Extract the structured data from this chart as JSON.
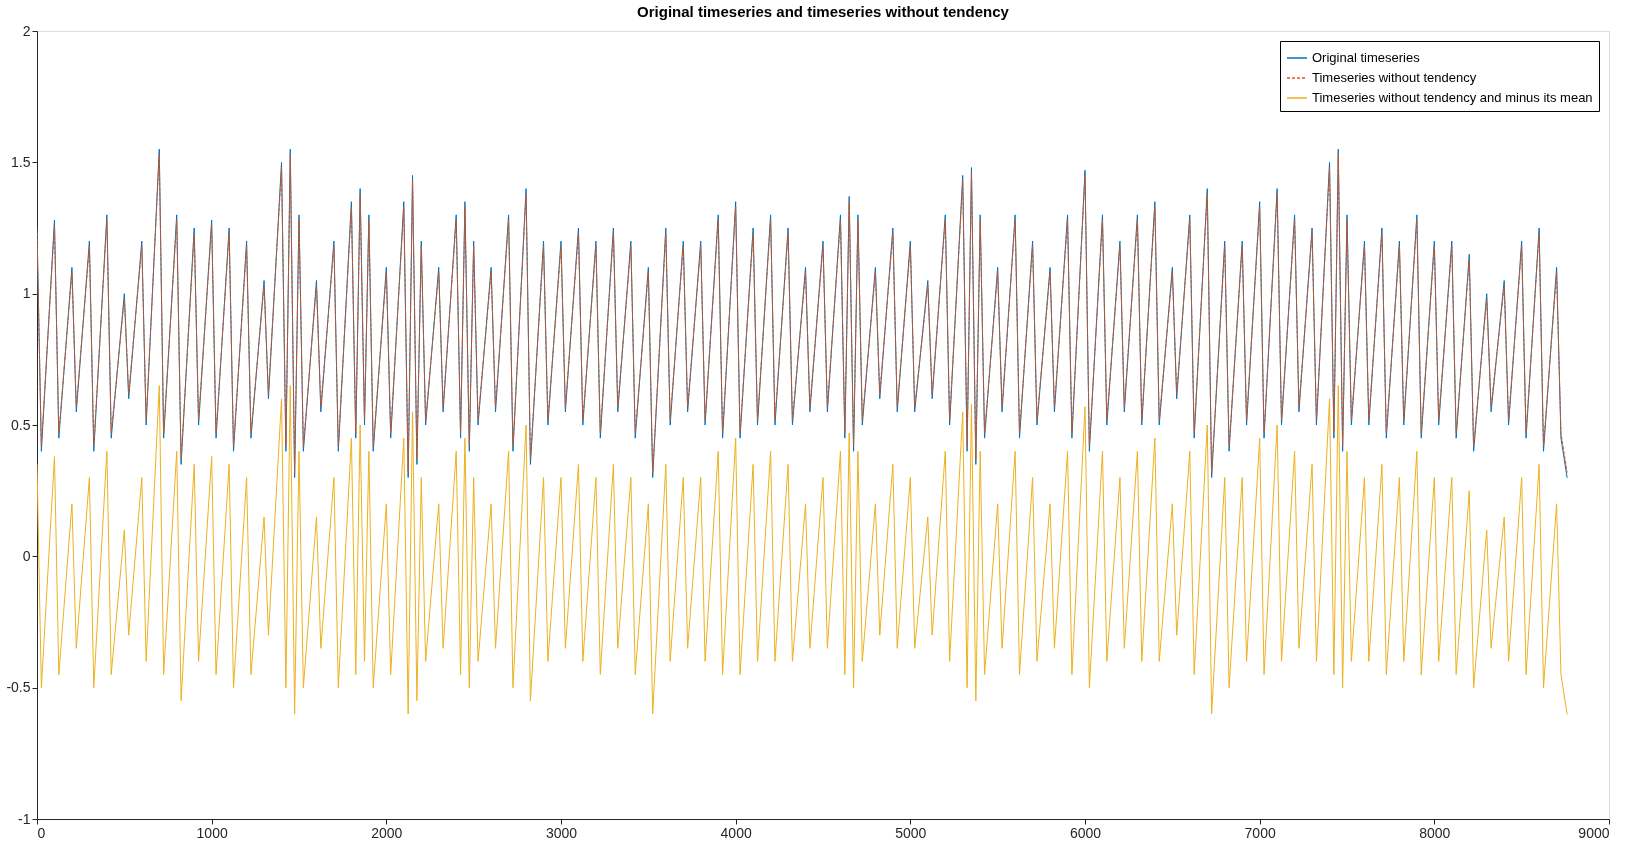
{
  "chart_data": {
    "type": "line",
    "title": "Original timeseries and timeseries without tendency",
    "x": [
      0,
      25,
      100,
      125,
      200,
      225,
      300,
      325,
      400,
      425,
      500,
      525,
      600,
      625,
      700,
      725,
      800,
      825,
      900,
      925,
      1000,
      1025,
      1100,
      1125,
      1200,
      1225,
      1300,
      1325,
      1400,
      1425,
      1450,
      1475,
      1500,
      1525,
      1600,
      1625,
      1700,
      1725,
      1800,
      1825,
      1850,
      1875,
      1900,
      1925,
      2000,
      2025,
      2100,
      2125,
      2150,
      2175,
      2200,
      2225,
      2300,
      2325,
      2400,
      2425,
      2450,
      2475,
      2500,
      2525,
      2600,
      2625,
      2700,
      2725,
      2800,
      2825,
      2900,
      2925,
      3000,
      3025,
      3100,
      3125,
      3200,
      3225,
      3300,
      3325,
      3400,
      3425,
      3500,
      3525,
      3600,
      3625,
      3700,
      3725,
      3800,
      3825,
      3900,
      3925,
      4000,
      4025,
      4100,
      4125,
      4200,
      4225,
      4300,
      4325,
      4400,
      4425,
      4500,
      4525,
      4600,
      4625,
      4650,
      4675,
      4700,
      4725,
      4800,
      4825,
      4900,
      4925,
      5000,
      5025,
      5100,
      5125,
      5200,
      5225,
      5300,
      5325,
      5350,
      5375,
      5400,
      5425,
      5500,
      5525,
      5600,
      5625,
      5700,
      5725,
      5800,
      5825,
      5900,
      5925,
      6000,
      6025,
      6100,
      6125,
      6200,
      6225,
      6300,
      6325,
      6400,
      6425,
      6500,
      6525,
      6600,
      6625,
      6700,
      6725,
      6800,
      6825,
      6900,
      6925,
      7000,
      7025,
      7100,
      7125,
      7200,
      7225,
      7300,
      7325,
      7400,
      7425,
      7450,
      7475,
      7500,
      7525,
      7600,
      7625,
      7700,
      7725,
      7800,
      7825,
      7900,
      7925,
      8000,
      8025,
      8100,
      8125,
      8200,
      8225,
      8300,
      8325,
      8400,
      8425,
      8500,
      8525,
      8600,
      8625,
      8700,
      8725,
      8760
    ],
    "series": [
      {
        "name": "Original timeseries",
        "color": "#0072bd",
        "line_style": "solid",
        "values": [
          1.25,
          0.4,
          1.28,
          0.45,
          1.1,
          0.55,
          1.2,
          0.4,
          1.3,
          0.45,
          1.0,
          0.6,
          1.2,
          0.5,
          1.55,
          0.45,
          1.3,
          0.35,
          1.25,
          0.5,
          1.28,
          0.45,
          1.25,
          0.4,
          1.2,
          0.45,
          1.05,
          0.6,
          1.5,
          0.4,
          1.55,
          0.3,
          1.3,
          0.4,
          1.05,
          0.55,
          1.2,
          0.4,
          1.35,
          0.45,
          1.4,
          0.5,
          1.3,
          0.4,
          1.1,
          0.45,
          1.35,
          0.3,
          1.45,
          0.35,
          1.2,
          0.5,
          1.1,
          0.55,
          1.3,
          0.45,
          1.35,
          0.4,
          1.2,
          0.5,
          1.1,
          0.55,
          1.3,
          0.4,
          1.4,
          0.35,
          1.2,
          0.5,
          1.2,
          0.55,
          1.25,
          0.5,
          1.2,
          0.45,
          1.25,
          0.55,
          1.2,
          0.45,
          1.1,
          0.3,
          1.25,
          0.5,
          1.2,
          0.55,
          1.2,
          0.5,
          1.3,
          0.45,
          1.35,
          0.45,
          1.25,
          0.5,
          1.3,
          0.5,
          1.25,
          0.5,
          1.1,
          0.55,
          1.2,
          0.55,
          1.3,
          0.45,
          1.37,
          0.4,
          1.3,
          0.5,
          1.1,
          0.6,
          1.25,
          0.55,
          1.2,
          0.55,
          1.05,
          0.6,
          1.3,
          0.5,
          1.45,
          0.4,
          1.48,
          0.35,
          1.3,
          0.45,
          1.1,
          0.55,
          1.3,
          0.45,
          1.2,
          0.5,
          1.1,
          0.55,
          1.3,
          0.45,
          1.47,
          0.4,
          1.3,
          0.5,
          1.2,
          0.55,
          1.3,
          0.5,
          1.35,
          0.5,
          1.1,
          0.6,
          1.3,
          0.45,
          1.4,
          0.3,
          1.2,
          0.4,
          1.2,
          0.5,
          1.35,
          0.45,
          1.4,
          0.5,
          1.3,
          0.55,
          1.25,
          0.5,
          1.5,
          0.45,
          1.55,
          0.4,
          1.3,
          0.5,
          1.2,
          0.5,
          1.25,
          0.45,
          1.2,
          0.5,
          1.3,
          0.45,
          1.2,
          0.5,
          1.2,
          0.45,
          1.15,
          0.4,
          1.0,
          0.55,
          1.05,
          0.5,
          1.2,
          0.45,
          1.25,
          0.4,
          1.1,
          0.45,
          0.3
        ]
      },
      {
        "name": "Timeseries without tendency",
        "color": "#d95319",
        "line_style": "dashed",
        "values": [
          1.23,
          0.42,
          1.26,
          0.47,
          1.08,
          0.57,
          1.18,
          0.42,
          1.28,
          0.47,
          0.98,
          0.62,
          1.18,
          0.52,
          1.53,
          0.47,
          1.28,
          0.37,
          1.23,
          0.52,
          1.26,
          0.47,
          1.23,
          0.42,
          1.18,
          0.47,
          1.03,
          0.62,
          1.48,
          0.42,
          1.53,
          0.32,
          1.28,
          0.42,
          1.03,
          0.57,
          1.18,
          0.42,
          1.33,
          0.47,
          1.38,
          0.52,
          1.28,
          0.42,
          1.08,
          0.47,
          1.33,
          0.32,
          1.43,
          0.37,
          1.18,
          0.52,
          1.08,
          0.57,
          1.28,
          0.47,
          1.33,
          0.42,
          1.18,
          0.52,
          1.08,
          0.57,
          1.28,
          0.42,
          1.38,
          0.37,
          1.18,
          0.52,
          1.18,
          0.57,
          1.23,
          0.52,
          1.18,
          0.47,
          1.23,
          0.57,
          1.18,
          0.47,
          1.08,
          0.32,
          1.23,
          0.52,
          1.18,
          0.57,
          1.18,
          0.52,
          1.28,
          0.47,
          1.33,
          0.47,
          1.23,
          0.52,
          1.28,
          0.52,
          1.23,
          0.52,
          1.08,
          0.57,
          1.18,
          0.57,
          1.28,
          0.47,
          1.35,
          0.42,
          1.28,
          0.52,
          1.08,
          0.62,
          1.23,
          0.57,
          1.18,
          0.57,
          1.03,
          0.62,
          1.28,
          0.52,
          1.43,
          0.42,
          1.46,
          0.37,
          1.28,
          0.47,
          1.08,
          0.57,
          1.28,
          0.47,
          1.18,
          0.52,
          1.08,
          0.57,
          1.28,
          0.47,
          1.45,
          0.42,
          1.28,
          0.52,
          1.18,
          0.57,
          1.28,
          0.52,
          1.33,
          0.52,
          1.08,
          0.62,
          1.28,
          0.47,
          1.38,
          0.32,
          1.18,
          0.42,
          1.18,
          0.52,
          1.33,
          0.47,
          1.38,
          0.52,
          1.28,
          0.57,
          1.23,
          0.52,
          1.48,
          0.47,
          1.53,
          0.42,
          1.28,
          0.52,
          1.18,
          0.52,
          1.23,
          0.47,
          1.18,
          0.52,
          1.28,
          0.47,
          1.18,
          0.52,
          1.18,
          0.47,
          1.13,
          0.42,
          0.98,
          0.57,
          1.03,
          0.52,
          1.18,
          0.47,
          1.23,
          0.42,
          1.08,
          0.47,
          0.32
        ]
      },
      {
        "name": "Timeseries without tendency and minus its mean",
        "color": "#edb120",
        "line_style": "solid",
        "values": [
          0.35,
          -0.5,
          0.38,
          -0.45,
          0.2,
          -0.35,
          0.3,
          -0.5,
          0.4,
          -0.45,
          0.1,
          -0.3,
          0.3,
          -0.4,
          0.65,
          -0.45,
          0.4,
          -0.55,
          0.35,
          -0.4,
          0.38,
          -0.45,
          0.35,
          -0.5,
          0.3,
          -0.45,
          0.15,
          -0.3,
          0.6,
          -0.5,
          0.65,
          -0.6,
          0.4,
          -0.5,
          0.15,
          -0.35,
          0.3,
          -0.5,
          0.45,
          -0.45,
          0.5,
          -0.4,
          0.4,
          -0.5,
          0.2,
          -0.45,
          0.45,
          -0.6,
          0.55,
          -0.55,
          0.3,
          -0.4,
          0.2,
          -0.35,
          0.4,
          -0.45,
          0.45,
          -0.5,
          0.3,
          -0.4,
          0.2,
          -0.35,
          0.4,
          -0.5,
          0.5,
          -0.55,
          0.3,
          -0.4,
          0.3,
          -0.35,
          0.35,
          -0.4,
          0.3,
          -0.45,
          0.35,
          -0.35,
          0.3,
          -0.45,
          0.2,
          -0.6,
          0.35,
          -0.4,
          0.3,
          -0.35,
          0.3,
          -0.4,
          0.4,
          -0.45,
          0.45,
          -0.45,
          0.35,
          -0.4,
          0.4,
          -0.4,
          0.35,
          -0.4,
          0.2,
          -0.35,
          0.3,
          -0.35,
          0.4,
          -0.45,
          0.47,
          -0.5,
          0.4,
          -0.4,
          0.2,
          -0.3,
          0.35,
          -0.35,
          0.3,
          -0.35,
          0.15,
          -0.3,
          0.4,
          -0.4,
          0.55,
          -0.5,
          0.58,
          -0.55,
          0.4,
          -0.45,
          0.2,
          -0.35,
          0.4,
          -0.45,
          0.3,
          -0.4,
          0.2,
          -0.35,
          0.4,
          -0.45,
          0.57,
          -0.5,
          0.4,
          -0.4,
          0.3,
          -0.35,
          0.4,
          -0.4,
          0.45,
          -0.4,
          0.2,
          -0.3,
          0.4,
          -0.45,
          0.5,
          -0.6,
          0.3,
          -0.5,
          0.3,
          -0.4,
          0.45,
          -0.45,
          0.5,
          -0.4,
          0.4,
          -0.35,
          0.35,
          -0.4,
          0.6,
          -0.45,
          0.65,
          -0.5,
          0.4,
          -0.4,
          0.3,
          -0.4,
          0.35,
          -0.45,
          0.3,
          -0.4,
          0.4,
          -0.45,
          0.3,
          -0.4,
          0.3,
          -0.45,
          0.25,
          -0.5,
          0.1,
          -0.35,
          0.15,
          -0.4,
          0.3,
          -0.45,
          0.35,
          -0.5,
          0.2,
          -0.45,
          -0.6
        ]
      }
    ],
    "xlim": [
      0,
      9000
    ],
    "xticks": [
      0,
      1000,
      2000,
      3000,
      4000,
      5000,
      6000,
      7000,
      8000,
      9000
    ],
    "ylim": [
      -1,
      2
    ],
    "yticks": [
      -1,
      -0.5,
      0,
      0.5,
      1,
      1.5,
      2
    ],
    "legend": "top right",
    "grid": false
  }
}
